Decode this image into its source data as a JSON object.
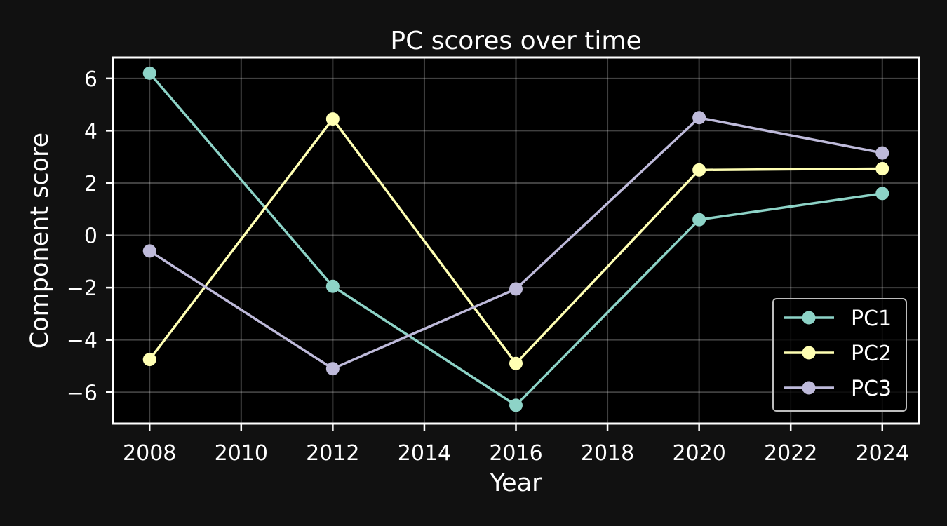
{
  "chart_data": {
    "type": "line",
    "title": "PC scores over time",
    "xlabel": "Year",
    "ylabel": "Component score",
    "x": [
      2008,
      2012,
      2016,
      2020,
      2024
    ],
    "xlim": [
      2007.2,
      2024.8
    ],
    "ylim": [
      -7.2,
      6.8
    ],
    "xticks": [
      2008,
      2010,
      2012,
      2014,
      2016,
      2018,
      2020,
      2022,
      2024
    ],
    "yticks": [
      -6,
      -4,
      -2,
      0,
      2,
      4,
      6
    ],
    "grid": true,
    "legend_position": "lower-right",
    "background": "#000000",
    "figure_background": "#111111",
    "series": [
      {
        "name": "PC1",
        "color": "#8dd3c7",
        "values": [
          6.2,
          -1.95,
          -6.5,
          0.6,
          1.6
        ]
      },
      {
        "name": "PC2",
        "color": "#ffffb3",
        "values": [
          -4.75,
          4.45,
          -4.9,
          2.5,
          2.55
        ]
      },
      {
        "name": "PC3",
        "color": "#bebada",
        "values": [
          -0.6,
          -5.1,
          -2.05,
          4.5,
          3.15
        ]
      }
    ]
  }
}
